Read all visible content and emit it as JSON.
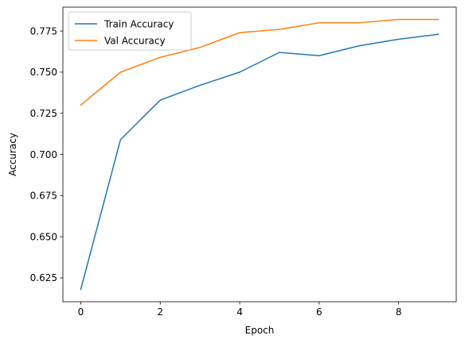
{
  "chart_data": {
    "type": "line",
    "title": "",
    "xlabel": "Epoch",
    "ylabel": "Accuracy",
    "x": [
      0,
      1,
      2,
      3,
      4,
      5,
      6,
      7,
      8,
      9
    ],
    "xlim": [
      -0.45,
      9.45
    ],
    "ylim": [
      0.6105,
      0.7895
    ],
    "xticks": [
      0,
      2,
      4,
      6,
      8
    ],
    "yticks": [
      0.625,
      0.65,
      0.675,
      0.7,
      0.725,
      0.75,
      0.775
    ],
    "xtick_labels": [
      "0",
      "2",
      "4",
      "6",
      "8"
    ],
    "ytick_labels": [
      "0.625",
      "0.650",
      "0.675",
      "0.700",
      "0.725",
      "0.750",
      "0.775"
    ],
    "grid": false,
    "legend_position": "upper-left",
    "series": [
      {
        "name": "Train Accuracy",
        "color": "#1f77b4",
        "values": [
          0.618,
          0.709,
          0.733,
          0.742,
          0.75,
          0.762,
          0.76,
          0.766,
          0.77,
          0.773
        ]
      },
      {
        "name": "Val Accuracy",
        "color": "#ff7f0e",
        "values": [
          0.73,
          0.75,
          0.759,
          0.765,
          0.774,
          0.776,
          0.78,
          0.78,
          0.782,
          0.782
        ]
      }
    ]
  }
}
